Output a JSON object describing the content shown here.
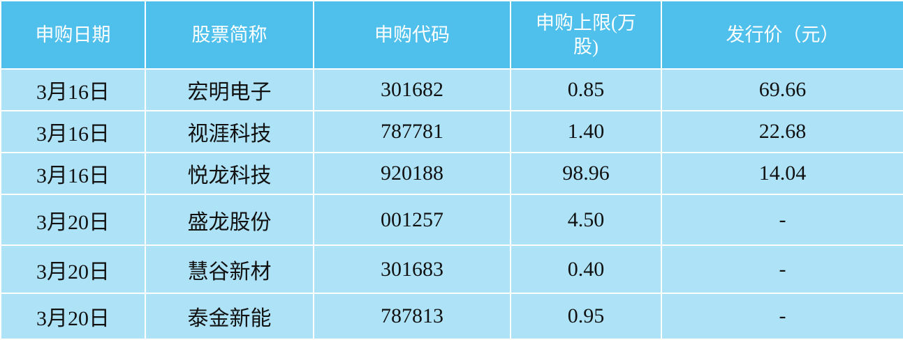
{
  "colors": {
    "header_bg": "#4fc0ec",
    "row_bg": "#aee3f7",
    "grid": "#ffffff"
  },
  "table": {
    "headers": [
      "申购日期",
      "股票简称",
      "申购代码",
      "申购上限(万股)",
      "发行价（元）"
    ],
    "rows": [
      [
        "3月16日",
        "宏明电子",
        "301682",
        "0.85",
        "69.66"
      ],
      [
        "3月16日",
        "视涯科技",
        "787781",
        "1.40",
        "22.68"
      ],
      [
        "3月16日",
        "悦龙科技",
        "920188",
        "98.96",
        "14.04"
      ],
      [
        "3月20日",
        "盛龙股份",
        "001257",
        "4.50",
        "-"
      ],
      [
        "3月20日",
        "慧谷新材",
        "301683",
        "0.40",
        "-"
      ],
      [
        "3月20日",
        "泰金新能",
        "787813",
        "0.95",
        "-"
      ]
    ]
  }
}
